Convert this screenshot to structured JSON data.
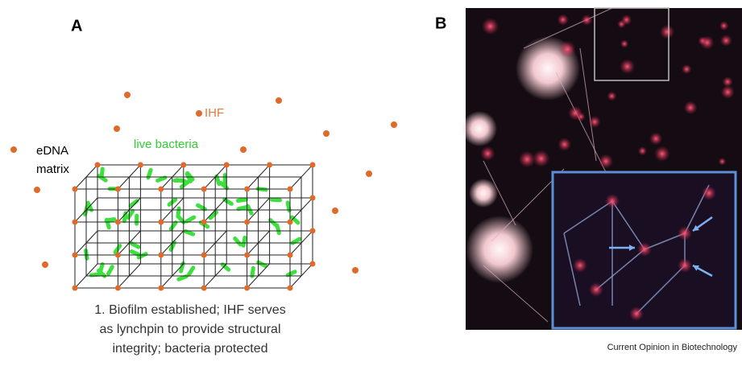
{
  "panel_a": {
    "label": "A",
    "ihf_label": "IHF",
    "bacteria_label": "live bacteria",
    "matrix_label": [
      "eDNA",
      "matrix"
    ],
    "caption": [
      "1. Biofilm established; IHF serves",
      "as lynchpin to provide structural",
      "integrity; bacteria protected"
    ]
  },
  "panel_b": {
    "label": "B",
    "credit": "Current Opinion in Biotechnology"
  }
}
